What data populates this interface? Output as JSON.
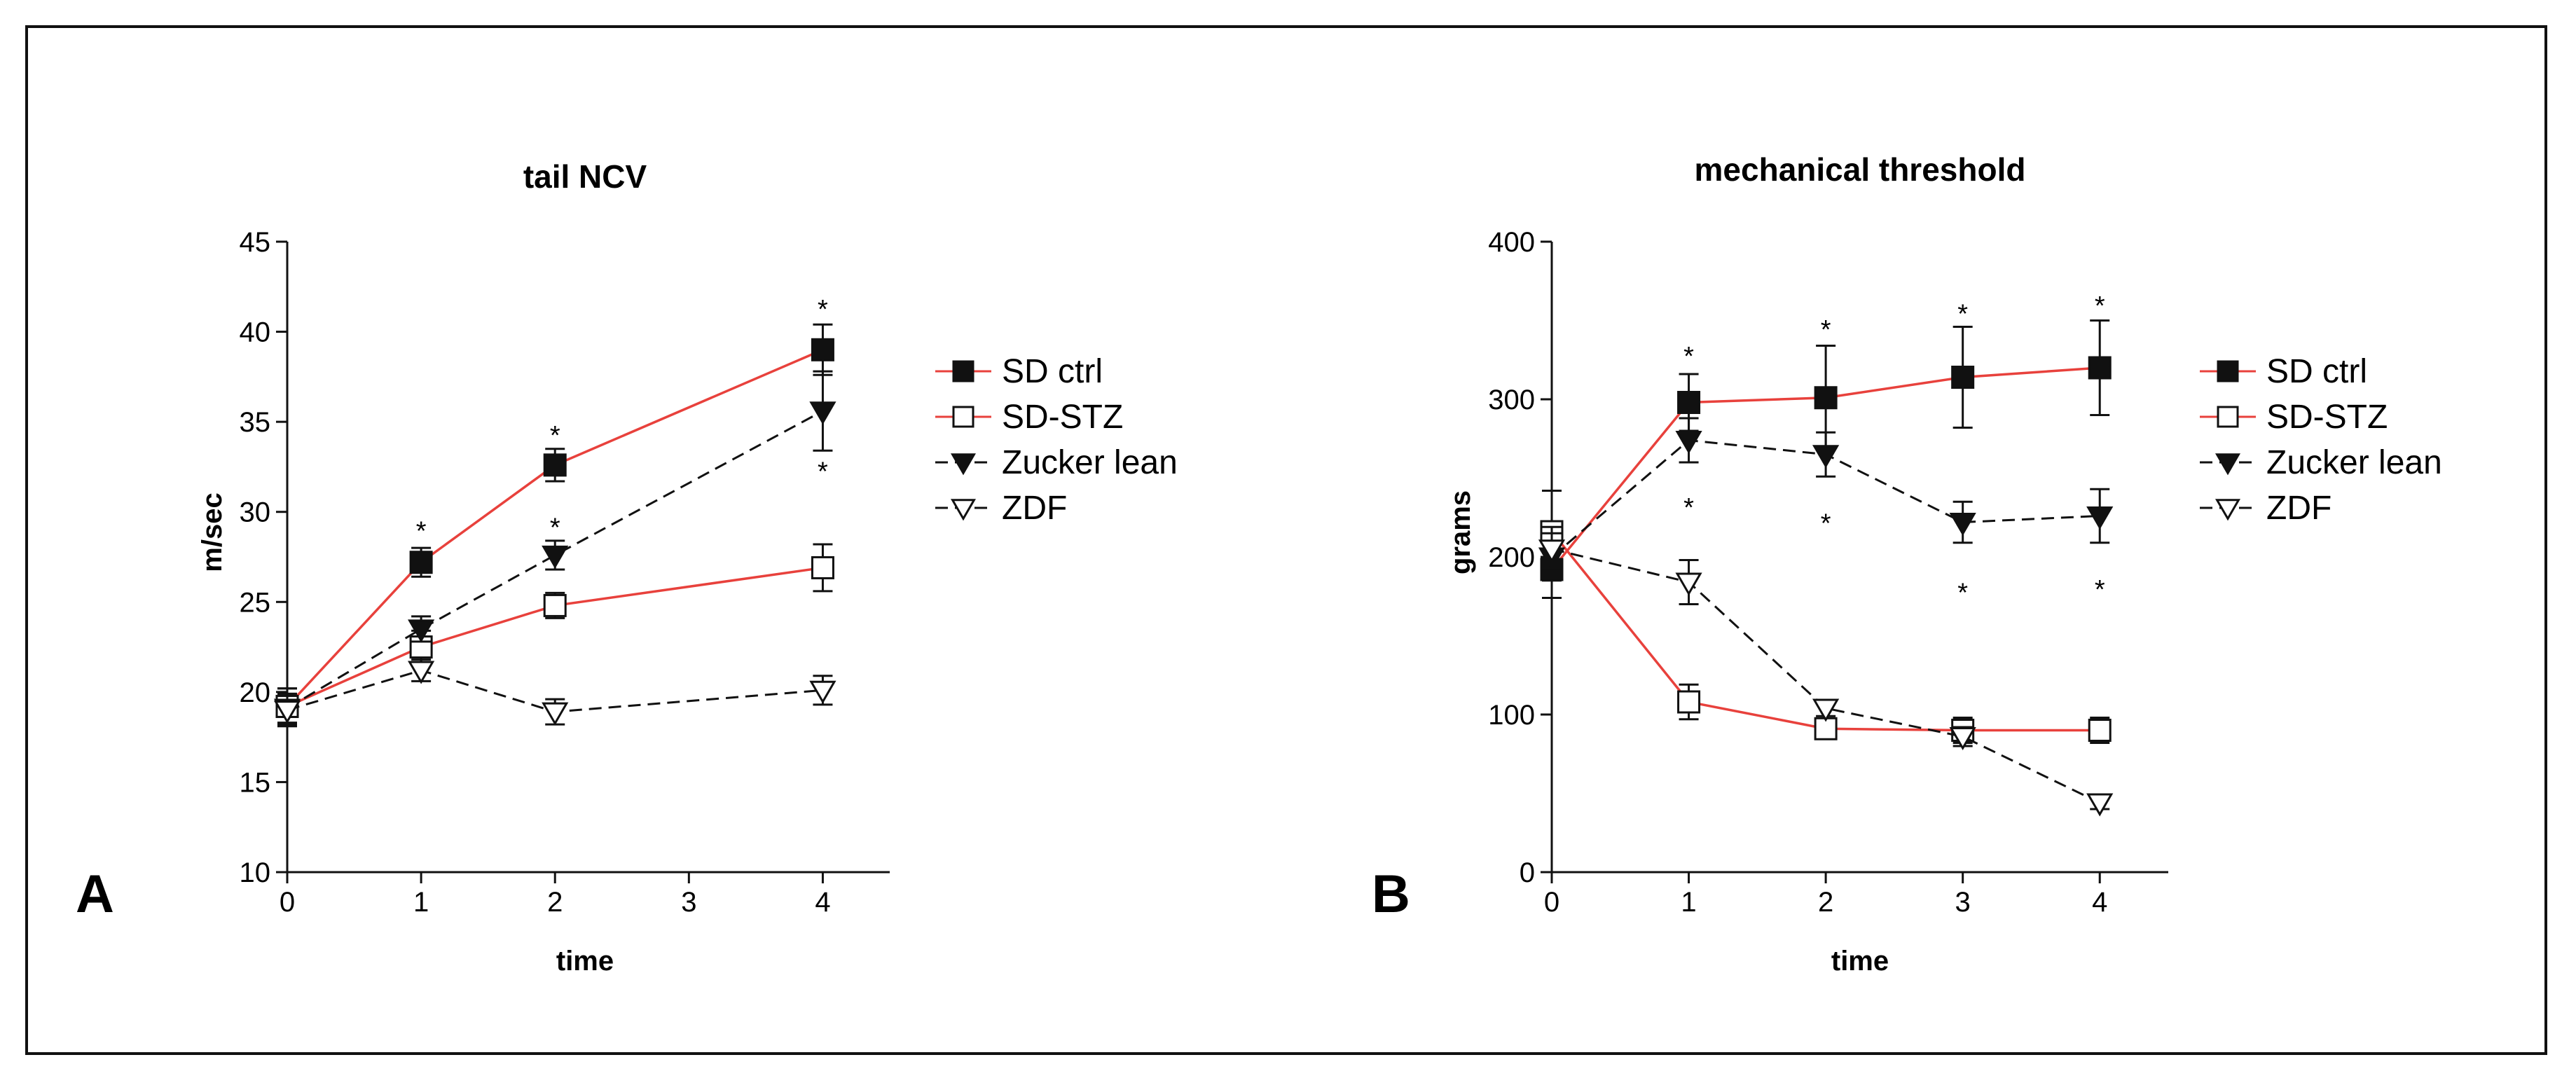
{
  "chart_data": [
    {
      "type": "line",
      "panel_label": "A",
      "title": "tail NCV",
      "xlabel": "time",
      "ylabel": "m/sec",
      "xlim": [
        0,
        4.5
      ],
      "ylim": [
        10,
        45
      ],
      "x_ticks": [
        0,
        1,
        2,
        3,
        4
      ],
      "y_ticks": [
        10,
        15,
        20,
        25,
        30,
        35,
        40,
        45
      ],
      "legend_position": "right",
      "series": [
        {
          "name": "SD ctrl",
          "color": "#e8413c",
          "dash": "solid",
          "marker": "filled-square",
          "x": [
            0,
            1,
            2,
            4
          ],
          "y": [
            19.2,
            27.2,
            32.6,
            39.0
          ],
          "err": [
            1.0,
            0.8,
            0.9,
            1.4
          ]
        },
        {
          "name": "SD-STZ",
          "color": "#e8413c",
          "dash": "solid",
          "marker": "open-square",
          "x": [
            0,
            1,
            2,
            4
          ],
          "y": [
            19.2,
            22.5,
            24.8,
            26.9
          ],
          "err": [
            1.0,
            0.9,
            0.7,
            1.3
          ]
        },
        {
          "name": "Zucker lean",
          "color": "#111111",
          "dash": "dashed",
          "marker": "filled-triangle-down",
          "x": [
            0,
            1,
            2,
            4
          ],
          "y": [
            19.1,
            23.5,
            27.6,
            35.6
          ],
          "err": [
            0.8,
            0.7,
            0.8,
            2.2
          ]
        },
        {
          "name": "ZDF",
          "color": "#111111",
          "dash": "dashed",
          "marker": "open-triangle-down",
          "x": [
            0,
            1,
            2,
            4
          ],
          "y": [
            19.0,
            21.2,
            18.9,
            20.1
          ],
          "err": [
            0.9,
            0.6,
            0.7,
            0.8
          ]
        }
      ],
      "annotations": [
        {
          "x": 1,
          "y": 29.0,
          "text": "*"
        },
        {
          "x": 2,
          "y": 34.3,
          "text": "*"
        },
        {
          "x": 4,
          "y": 41.3,
          "text": "*"
        },
        {
          "x": 2,
          "y": 29.2,
          "text": "*"
        },
        {
          "x": 4,
          "y": 32.3,
          "text": "*"
        }
      ]
    },
    {
      "type": "line",
      "panel_label": "B",
      "title": "mechanical threshold",
      "xlabel": "time",
      "ylabel": "grams",
      "xlim": [
        0,
        4.5
      ],
      "ylim": [
        0,
        400
      ],
      "x_ticks": [
        0,
        1,
        2,
        3,
        4
      ],
      "y_ticks": [
        0,
        100,
        200,
        300,
        400
      ],
      "legend_position": "right",
      "series": [
        {
          "name": "SD ctrl",
          "color": "#e8413c",
          "dash": "solid",
          "marker": "filled-square",
          "x": [
            0,
            1,
            2,
            3,
            4
          ],
          "y": [
            192,
            298,
            301,
            314,
            320
          ],
          "err": [
            18,
            18,
            33,
            32,
            30
          ]
        },
        {
          "name": "SD-STZ",
          "color": "#e8413c",
          "dash": "solid",
          "marker": "open-square",
          "x": [
            0,
            1,
            2,
            3,
            4
          ],
          "y": [
            216,
            108,
            91,
            90,
            90
          ],
          "err": [
            26,
            11,
            6,
            8,
            8
          ]
        },
        {
          "name": "Zucker lean",
          "color": "#111111",
          "dash": "dashed",
          "marker": "filled-triangle-down",
          "x": [
            0,
            1,
            2,
            3,
            4
          ],
          "y": [
            200,
            274,
            265,
            222,
            226
          ],
          "err": [
            15,
            14,
            14,
            13,
            17
          ]
        },
        {
          "name": "ZDF",
          "color": "#111111",
          "dash": "dashed",
          "marker": "open-triangle-down",
          "x": [
            0,
            1,
            2,
            3,
            4
          ],
          "y": [
            205,
            184,
            104,
            86,
            44
          ],
          "err": [
            14,
            14,
            5,
            6,
            4
          ]
        }
      ],
      "annotations": [
        {
          "x": 1,
          "y": 328,
          "text": "*"
        },
        {
          "x": 2,
          "y": 345,
          "text": "*"
        },
        {
          "x": 3,
          "y": 355,
          "text": "*"
        },
        {
          "x": 4,
          "y": 360,
          "text": "*"
        },
        {
          "x": 1,
          "y": 232,
          "text": "*"
        },
        {
          "x": 2,
          "y": 222,
          "text": "*"
        },
        {
          "x": 3,
          "y": 178,
          "text": "*"
        },
        {
          "x": 4,
          "y": 180,
          "text": "*"
        }
      ]
    }
  ]
}
